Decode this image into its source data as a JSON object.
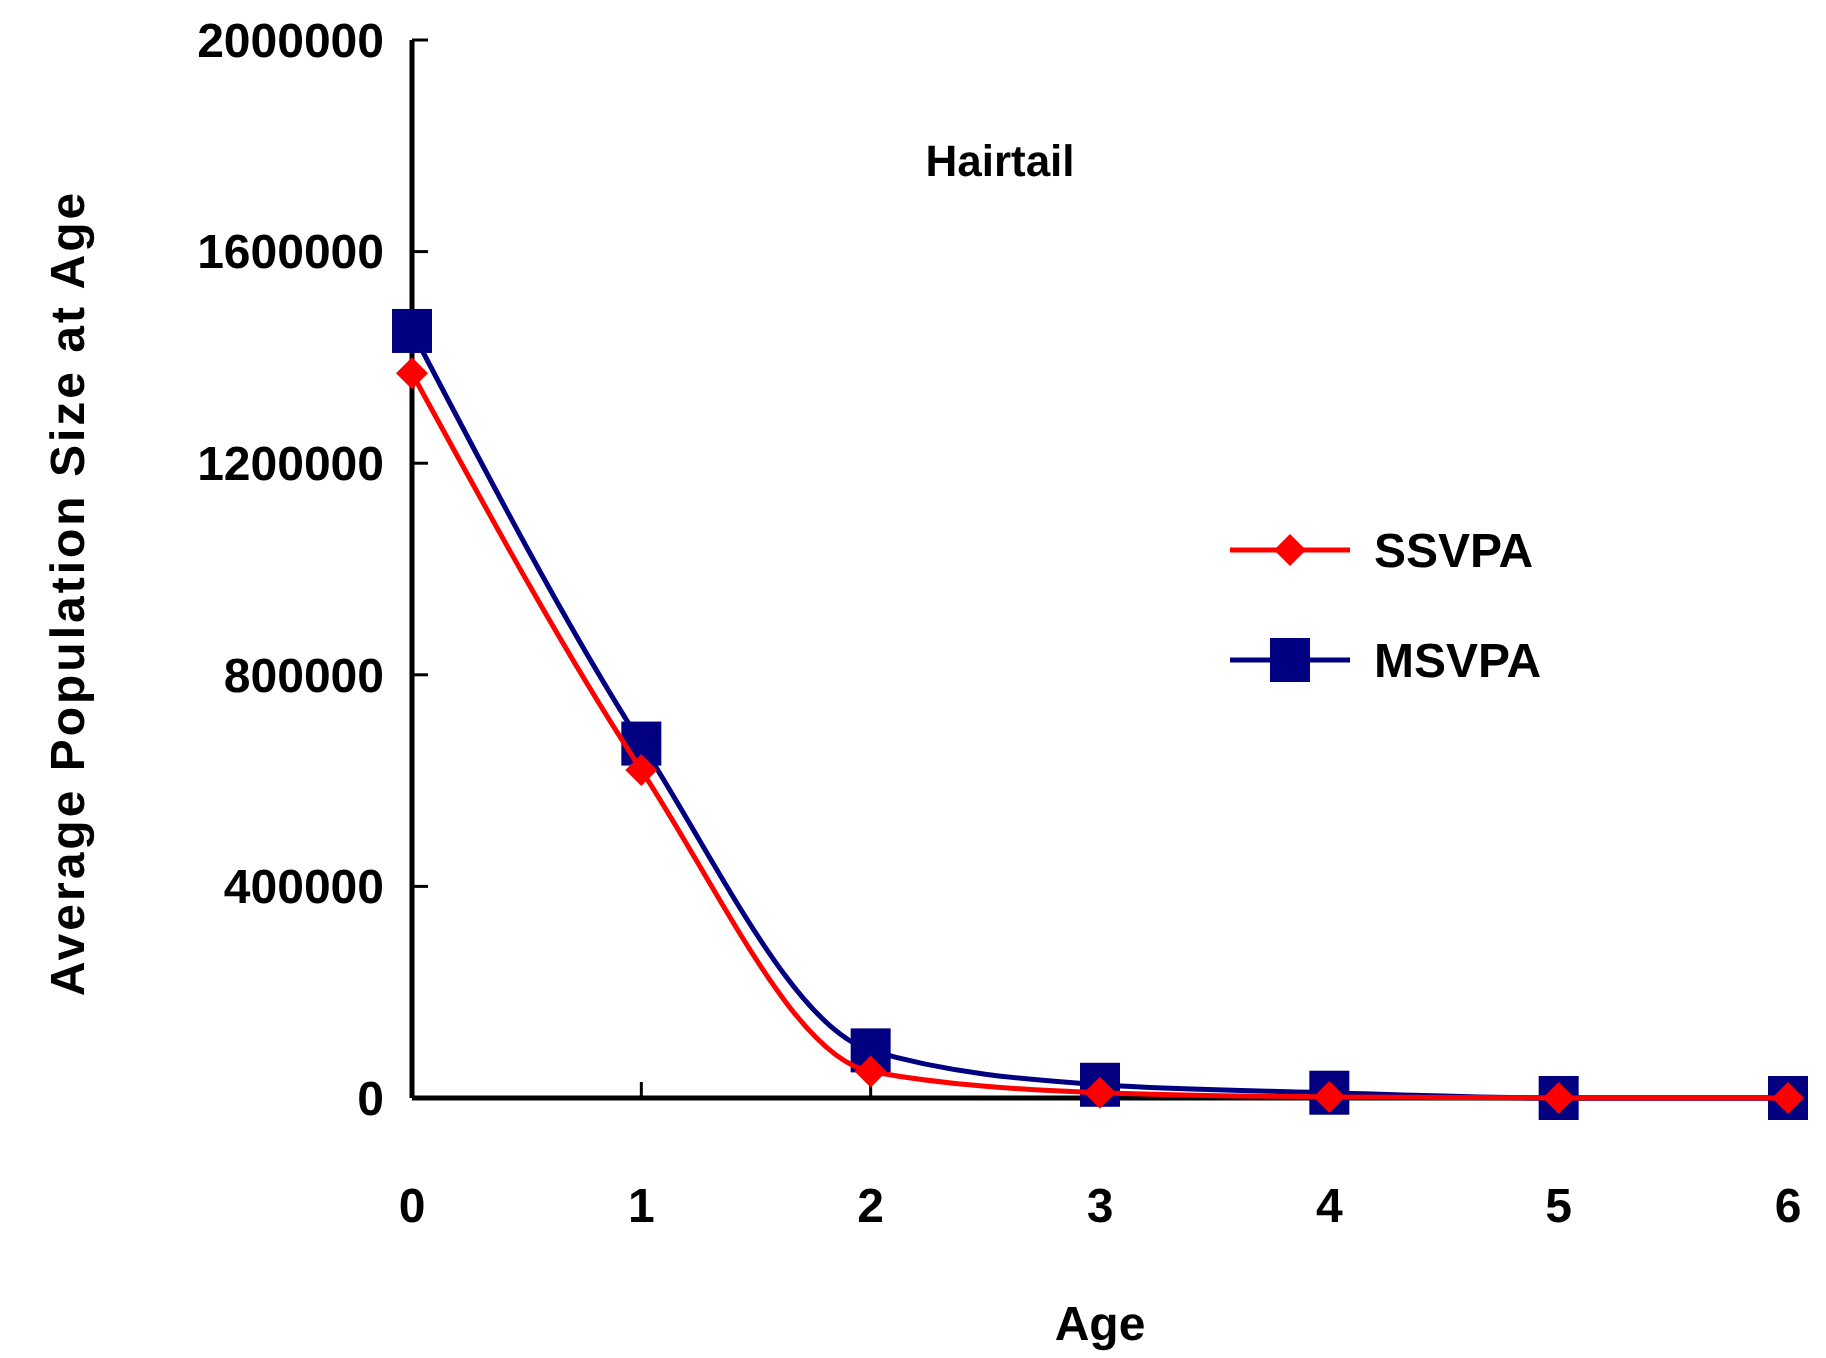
{
  "chart_data": {
    "type": "line",
    "title": "Hairtail",
    "xlabel": "Age",
    "ylabel": "Average Population Size at Age",
    "x": [
      0,
      1,
      2,
      3,
      4,
      5,
      6
    ],
    "series": [
      {
        "name": "SSVPA",
        "color": "#ff0000",
        "marker": "diamond",
        "values": [
          1370000,
          620000,
          50000,
          10000,
          2000,
          0,
          0
        ]
      },
      {
        "name": "MSVPA",
        "color": "#000080",
        "marker": "square",
        "values": [
          1450000,
          670000,
          90000,
          25000,
          10000,
          0,
          0
        ]
      }
    ],
    "xlim": [
      0,
      6
    ],
    "xticks": [
      0,
      1,
      2,
      3,
      4,
      5,
      6
    ],
    "ylim": [
      0,
      2000000
    ],
    "yticks": [
      0,
      400000,
      800000,
      1200000,
      1600000,
      2000000
    ],
    "legend": "right",
    "grid": false
  }
}
